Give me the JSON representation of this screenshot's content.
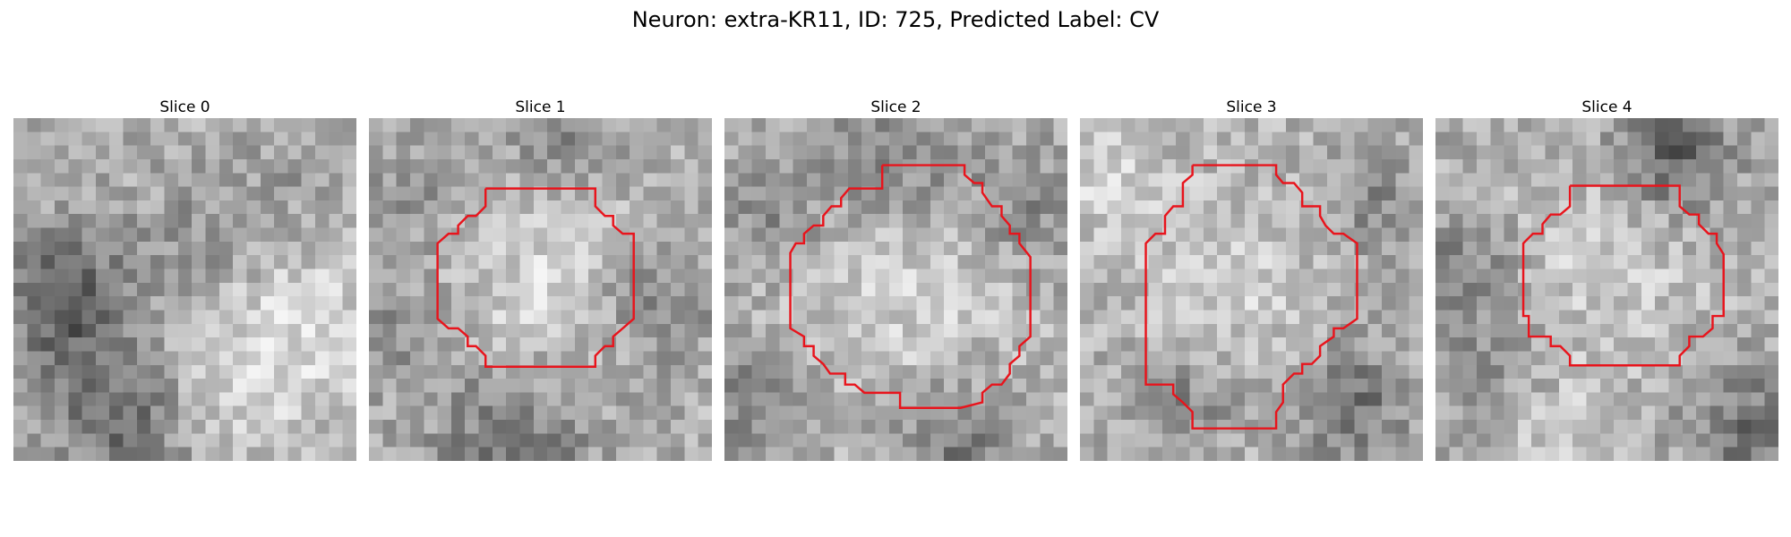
{
  "figure": {
    "title": "Neuron: extra-KR11, ID: 725, Predicted Label: CV"
  },
  "panels": [
    {
      "title": "Slice 0",
      "has_contour": false
    },
    {
      "title": "Slice 1",
      "has_contour": true
    },
    {
      "title": "Slice 2",
      "has_contour": true
    },
    {
      "title": "Slice 3",
      "has_contour": true
    },
    {
      "title": "Slice 4",
      "has_contour": true
    }
  ],
  "colors": {
    "contour": "#e8141c",
    "background": "#ffffff"
  }
}
